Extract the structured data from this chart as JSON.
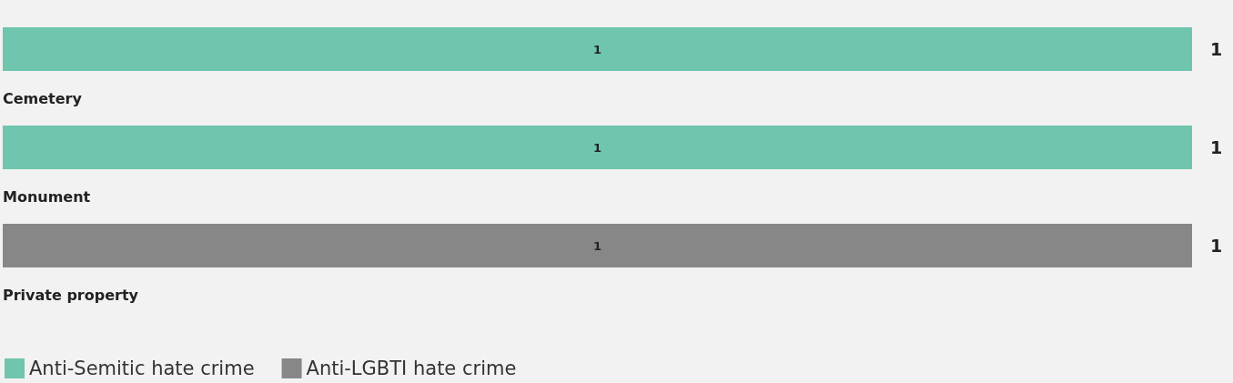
{
  "chart_data": {
    "type": "bar",
    "orientation": "horizontal",
    "stacked": true,
    "categories": [
      "Cemetery",
      "Monument",
      "Private property"
    ],
    "series": [
      {
        "name": "Anti-Semitic hate crime",
        "color": "#6fc5ad",
        "values": [
          1,
          1,
          null
        ]
      },
      {
        "name": "Anti-LGBTI hate crime",
        "color": "#878787",
        "values": [
          null,
          null,
          1
        ]
      }
    ],
    "data_labels": true,
    "totals": [
      "1",
      "1",
      "1"
    ],
    "legend": "bottom left",
    "grid": false,
    "tick_labels": "y"
  }
}
